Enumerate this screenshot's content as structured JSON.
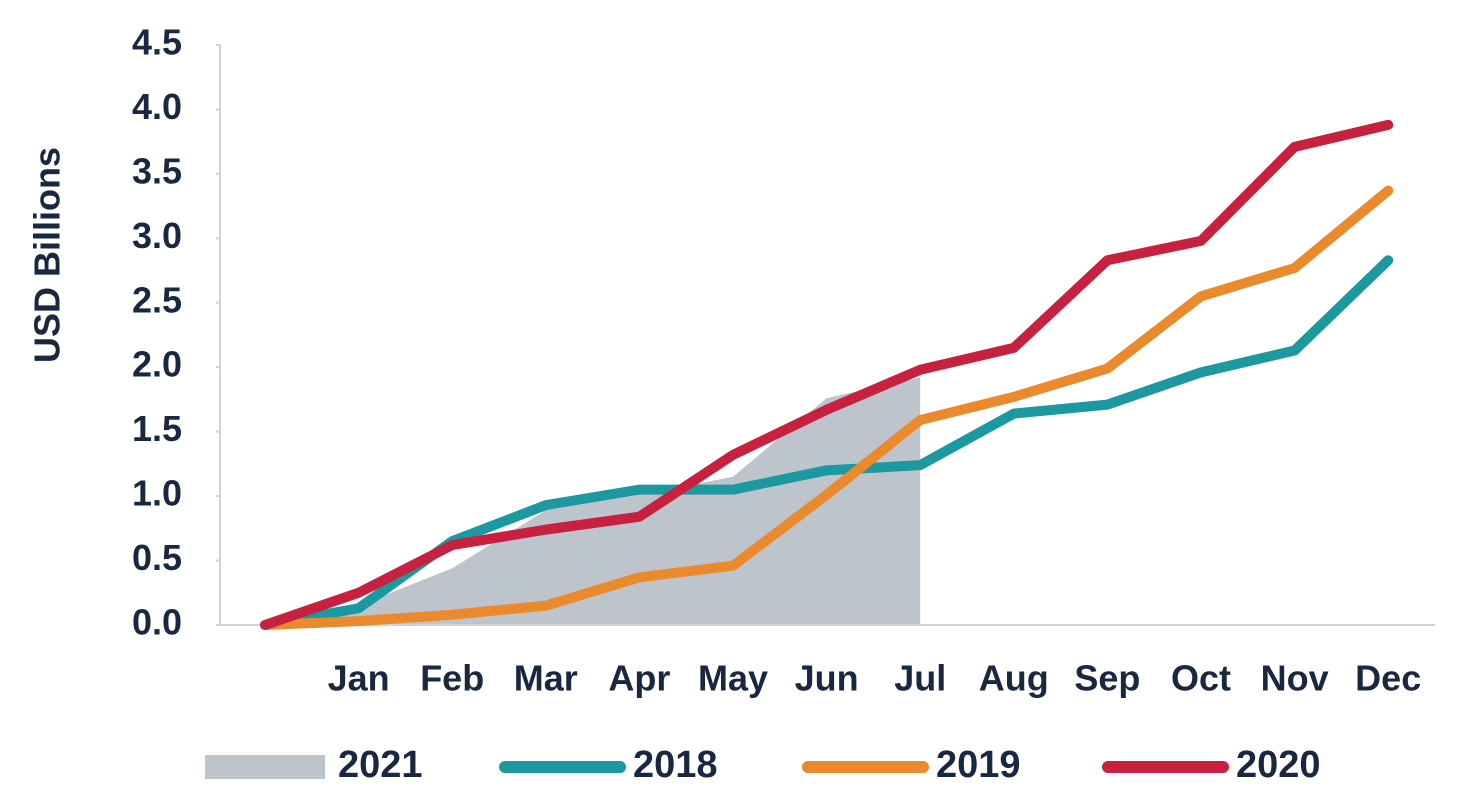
{
  "chart_data": {
    "type": "line",
    "y_label": "USD Billions",
    "categories": [
      null,
      "Jan",
      "Feb",
      "Mar",
      "Apr",
      "May",
      "Jun",
      "Jul",
      "Aug",
      "Sep",
      "Oct",
      "Nov",
      "Dec"
    ],
    "series": [
      {
        "name": "2021",
        "style": "area",
        "color": "#bec4cc",
        "values": [
          0,
          0.15,
          0.44,
          0.89,
          1.01,
          1.15,
          1.76,
          1.92,
          null,
          null,
          null,
          null,
          null
        ]
      },
      {
        "name": "2018",
        "style": "line",
        "color": "#1b98a0",
        "values": [
          0,
          0.13,
          0.65,
          0.93,
          1.05,
          1.05,
          1.2,
          1.24,
          1.64,
          1.71,
          1.96,
          2.13,
          2.83
        ]
      },
      {
        "name": "2019",
        "style": "line",
        "color": "#ea8a2c",
        "values": [
          0,
          0.03,
          0.08,
          0.15,
          0.37,
          0.46,
          1.01,
          1.59,
          1.77,
          1.99,
          2.55,
          2.77,
          3.37
        ]
      },
      {
        "name": "2020",
        "style": "line",
        "color": "#c8203f",
        "values": [
          0,
          0.25,
          0.62,
          0.74,
          0.84,
          1.32,
          1.67,
          1.98,
          2.15,
          2.83,
          2.98,
          3.71,
          3.88
        ]
      }
    ],
    "ylim": [
      0,
      4.5
    ],
    "yticks": [
      {
        "value": 0,
        "label": "0.0"
      },
      0.5,
      {
        "value": 1,
        "label": "1.0"
      },
      1.5,
      {
        "value": 2,
        "label": "2.0"
      },
      2.5,
      {
        "value": 3,
        "label": "3.0"
      },
      3.5,
      {
        "value": 4,
        "label": "4.0"
      },
      4.5
    ],
    "legend": "bottom",
    "grid": false
  }
}
